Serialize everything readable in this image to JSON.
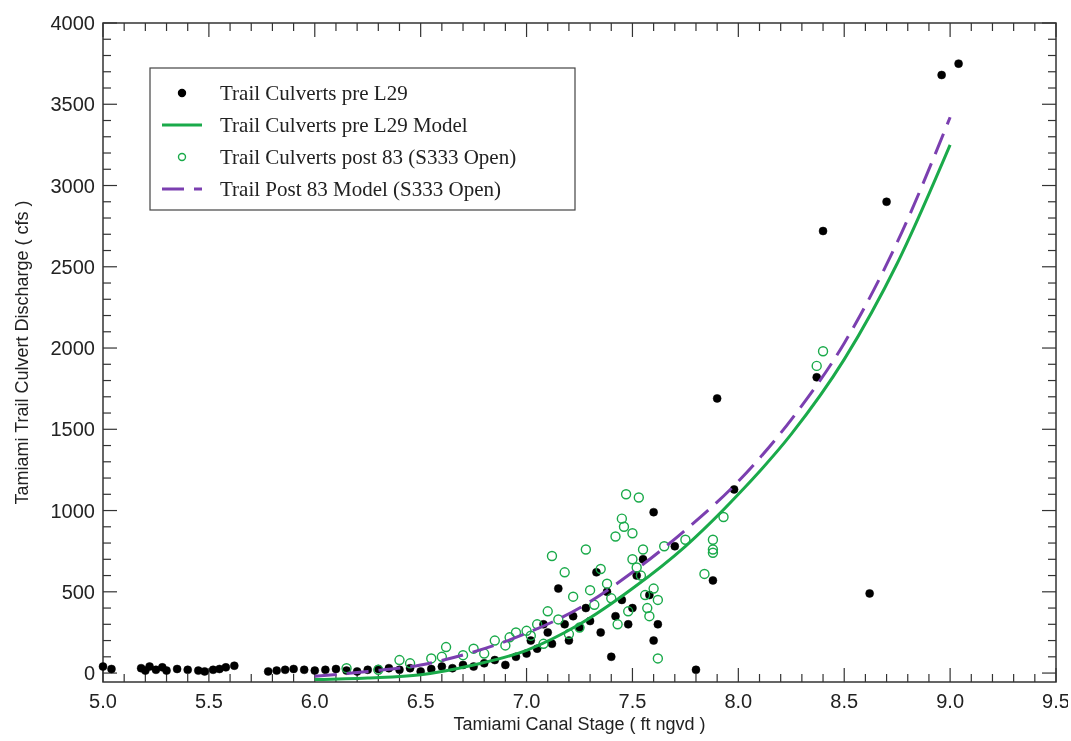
{
  "chart_data": {
    "type": "scatter",
    "xlabel": "Tamiami Canal Stage ( ft ngvd )",
    "ylabel": "Tamiami Trail Culvert Discharge ( cfs )",
    "xlim": [
      5.0,
      9.5
    ],
    "ylim": [
      -55,
      4000
    ],
    "xticks": [
      {
        "value": 5,
        "label": "5.0"
      },
      5.5,
      {
        "value": 6,
        "label": "6.0"
      },
      6.5,
      {
        "value": 7,
        "label": "7.0"
      },
      7.5,
      {
        "value": 8,
        "label": "8.0"
      },
      8.5,
      {
        "value": 9,
        "label": "9.0"
      },
      9.5
    ],
    "yticks": [
      0,
      500,
      1000,
      1500,
      2000,
      2500,
      3000,
      3500,
      4000
    ],
    "grid": false,
    "legend": "top left",
    "series": [
      {
        "name": "Trail Culverts pre L29",
        "marker": "circle",
        "color": "#000000",
        "x": [
          5.0,
          5.04,
          5.18,
          5.2,
          5.22,
          5.25,
          5.28,
          5.3,
          5.35,
          5.4,
          5.45,
          5.48,
          5.52,
          5.55,
          5.58,
          5.62,
          5.78,
          5.82,
          5.86,
          5.9,
          5.95,
          6.0,
          6.05,
          6.1,
          6.15,
          6.2,
          6.25,
          6.3,
          6.35,
          6.4,
          6.45,
          6.5,
          6.55,
          6.6,
          6.65,
          6.7,
          6.75,
          6.8,
          6.85,
          6.9,
          6.95,
          7.0,
          7.02,
          7.05,
          7.08,
          7.1,
          7.12,
          7.15,
          7.18,
          7.2,
          7.22,
          7.25,
          7.28,
          7.3,
          7.33,
          7.35,
          7.38,
          7.4,
          7.42,
          7.45,
          7.48,
          7.5,
          7.52,
          7.55,
          7.58,
          7.6,
          7.62,
          7.6,
          7.7,
          7.8,
          7.88,
          7.9,
          7.98,
          8.37,
          8.4,
          8.62,
          8.7,
          8.96,
          9.04
        ],
        "values": [
          40,
          25,
          30,
          15,
          40,
          20,
          35,
          15,
          25,
          20,
          15,
          10,
          20,
          25,
          35,
          45,
          10,
          15,
          20,
          25,
          20,
          15,
          20,
          25,
          15,
          10,
          20,
          25,
          30,
          20,
          30,
          10,
          25,
          40,
          30,
          50,
          40,
          60,
          80,
          50,
          100,
          120,
          200,
          150,
          300,
          250,
          180,
          520,
          300,
          200,
          350,
          280,
          400,
          320,
          620,
          250,
          500,
          100,
          350,
          450,
          300,
          400,
          600,
          700,
          480,
          200,
          300,
          990,
          780,
          20,
          570,
          1690,
          1130,
          1820,
          2720,
          490,
          2900,
          3680,
          3750
        ]
      },
      {
        "name": "Trail Culverts pre L29 Model",
        "type": "line",
        "line_style": "solid",
        "color": "#1aaa4a",
        "x": [
          6.0,
          6.25,
          6.5,
          6.75,
          7.0,
          7.25,
          7.5,
          7.75,
          8.0,
          8.25,
          8.5,
          8.75,
          9.0
        ],
        "values": [
          -40,
          -30,
          -10,
          50,
          140,
          300,
          520,
          780,
          1100,
          1470,
          1930,
          2520,
          3250
        ]
      },
      {
        "name": "Trail Culverts post 83 (S333 Open)",
        "marker": "circle",
        "color": "#1aaa4a",
        "x": [
          6.15,
          6.3,
          6.4,
          6.45,
          6.55,
          6.6,
          6.62,
          6.7,
          6.75,
          6.8,
          6.85,
          6.9,
          6.92,
          6.95,
          7.0,
          7.02,
          7.05,
          7.08,
          7.1,
          7.12,
          7.15,
          7.18,
          7.2,
          7.22,
          7.25,
          7.28,
          7.3,
          7.32,
          7.35,
          7.38,
          7.4,
          7.42,
          7.43,
          7.45,
          7.46,
          7.47,
          7.48,
          7.5,
          7.5,
          7.52,
          7.53,
          7.54,
          7.55,
          7.56,
          7.57,
          7.58,
          7.6,
          7.62,
          7.62,
          7.65,
          7.75,
          7.84,
          7.88,
          7.88,
          7.88,
          7.93,
          8.37,
          8.4
        ],
        "values": [
          30,
          20,
          80,
          60,
          90,
          100,
          160,
          110,
          150,
          120,
          200,
          170,
          220,
          250,
          260,
          230,
          300,
          180,
          380,
          720,
          330,
          620,
          240,
          470,
          280,
          760,
          510,
          420,
          640,
          550,
          460,
          840,
          300,
          950,
          900,
          1100,
          380,
          860,
          700,
          650,
          1080,
          600,
          760,
          480,
          400,
          350,
          520,
          450,
          90,
          780,
          820,
          610,
          740,
          760,
          820,
          960,
          1890,
          1980
        ]
      },
      {
        "name": "Trail Post 83 Model (S333 Open)",
        "type": "line",
        "line_style": "dashed",
        "color": "#7b3fb0",
        "x": [
          6.0,
          6.25,
          6.5,
          6.75,
          7.0,
          7.25,
          7.5,
          7.75,
          8.0,
          8.25,
          8.5,
          8.75,
          9.0
        ],
        "values": [
          -20,
          10,
          50,
          130,
          245,
          400,
          620,
          880,
          1180,
          1560,
          2030,
          2650,
          3420
        ]
      }
    ]
  }
}
